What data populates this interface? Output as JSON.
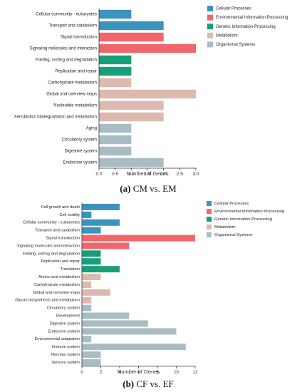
{
  "colors": {
    "Cellular Processes": "#3a94bd",
    "Environmental Information Processing": "#f0666a",
    "Genetic Information Processing": "#17a078",
    "Metabolism": "#ddb9ae",
    "Organismal Systems": "#a9bcc4"
  },
  "chart_data": [
    {
      "type": "bar",
      "orientation": "horizontal",
      "caption_letter": "(a)",
      "caption_text": "CM vs. EM",
      "xlabel": "Number of Genes",
      "xlim": [
        0,
        3.0
      ],
      "ticks": [
        "0.0",
        "0.5",
        "1.0",
        "1.5",
        "2.0",
        "2.5",
        "3.0"
      ],
      "legend_position": "top-right",
      "legend": [
        "Cellular Processes",
        "Environmental Information Processing",
        "Genetic Information Processing",
        "Metabolism",
        "Organismal Systems"
      ],
      "bars": [
        {
          "label": "Cellular community - eukaryotes",
          "value": 1,
          "group": "Cellular Processes"
        },
        {
          "label": "Transport and catabolism",
          "value": 2,
          "group": "Cellular Processes"
        },
        {
          "label": "Signal transduction",
          "value": 2,
          "group": "Environmental Information Processing"
        },
        {
          "label": "Signaling molecules and interaction",
          "value": 3,
          "group": "Environmental Information Processing"
        },
        {
          "label": "Folding, sorting and degradation",
          "value": 1,
          "group": "Genetic Information Processing"
        },
        {
          "label": "Replication and repair",
          "value": 1,
          "group": "Genetic Information Processing"
        },
        {
          "label": "Carbohydrate metabolism",
          "value": 1,
          "group": "Metabolism"
        },
        {
          "label": "Global and overview maps",
          "value": 3,
          "group": "Metabolism"
        },
        {
          "label": "Nucleotide metabolism",
          "value": 2,
          "group": "Metabolism"
        },
        {
          "label": "Xenobiotics biodegradation and metabolism",
          "value": 2,
          "group": "Metabolism"
        },
        {
          "label": "Aging",
          "value": 1,
          "group": "Organismal Systems"
        },
        {
          "label": "Circulatory system",
          "value": 1,
          "group": "Organismal Systems"
        },
        {
          "label": "Digestive system",
          "value": 1,
          "group": "Organismal Systems"
        },
        {
          "label": "Endocrine system",
          "value": 2,
          "group": "Organismal Systems"
        }
      ]
    },
    {
      "type": "bar",
      "orientation": "horizontal",
      "caption_letter": "(b)",
      "caption_text": "CF vs. EF",
      "xlabel": "Number of Genes",
      "xlim": [
        0,
        12
      ],
      "ticks": [
        "0",
        "2",
        "4",
        "6",
        "8",
        "10",
        "12"
      ],
      "legend_position": "top-right",
      "legend": [
        "Cellular Processes",
        "Environmental Information Processing",
        "Genetic Information Processing",
        "Metabolism",
        "Organismal Systems"
      ],
      "bars": [
        {
          "label": "Cell growth and death",
          "value": 4,
          "group": "Cellular Processes"
        },
        {
          "label": "Cell motility",
          "value": 1,
          "group": "Cellular Processes"
        },
        {
          "label": "Cellular community - eukaryotes",
          "value": 4,
          "group": "Cellular Processes"
        },
        {
          "label": "Transport and catabolism",
          "value": 2,
          "group": "Cellular Processes"
        },
        {
          "label": "Signal transduction",
          "value": 12,
          "group": "Environmental Information Processing"
        },
        {
          "label": "Signaling molecules and interaction",
          "value": 5,
          "group": "Environmental Information Processing"
        },
        {
          "label": "Folding, sorting and degradation",
          "value": 2,
          "group": "Genetic Information Processing"
        },
        {
          "label": "Replication and repair",
          "value": 2,
          "group": "Genetic Information Processing"
        },
        {
          "label": "Translation",
          "value": 4,
          "group": "Genetic Information Processing"
        },
        {
          "label": "Amino acid metabolism",
          "value": 2,
          "group": "Metabolism"
        },
        {
          "label": "Carbohydrate metabolism",
          "value": 1,
          "group": "Metabolism"
        },
        {
          "label": "Global and overview maps",
          "value": 3,
          "group": "Metabolism"
        },
        {
          "label": "Glycan biosynthesis and metabolism",
          "value": 1,
          "group": "Metabolism"
        },
        {
          "label": "Circulatory system",
          "value": 1,
          "group": "Organismal Systems"
        },
        {
          "label": "Development",
          "value": 5,
          "group": "Organismal Systems"
        },
        {
          "label": "Digestive system",
          "value": 7,
          "group": "Organismal Systems"
        },
        {
          "label": "Endocrine system",
          "value": 10,
          "group": "Organismal Systems"
        },
        {
          "label": "Environmental adaptation",
          "value": 1,
          "group": "Organismal Systems"
        },
        {
          "label": "Immune system",
          "value": 11,
          "group": "Organismal Systems"
        },
        {
          "label": "Nervous system",
          "value": 2,
          "group": "Organismal Systems"
        },
        {
          "label": "Sensory system",
          "value": 2,
          "group": "Organismal Systems"
        }
      ]
    }
  ]
}
